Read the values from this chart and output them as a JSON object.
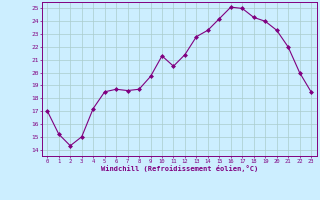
{
  "x": [
    0,
    1,
    2,
    3,
    4,
    5,
    6,
    7,
    8,
    9,
    10,
    11,
    12,
    13,
    14,
    15,
    16,
    17,
    18,
    19,
    20,
    21,
    22,
    23
  ],
  "y": [
    17.0,
    15.2,
    14.3,
    15.0,
    17.2,
    18.5,
    18.7,
    18.6,
    18.7,
    19.7,
    21.3,
    20.5,
    21.4,
    22.8,
    23.3,
    24.2,
    25.1,
    25.0,
    24.3,
    24.0,
    23.3,
    22.0,
    20.0,
    18.5
  ],
  "line_color": "#800080",
  "marker": "D",
  "marker_size": 2.0,
  "bg_color": "#cceeff",
  "grid_color": "#aacccc",
  "xlabel": "Windchill (Refroidissement éolien,°C)",
  "xlim": [
    -0.5,
    23.5
  ],
  "ylim": [
    13.5,
    25.5
  ],
  "yticks": [
    14,
    15,
    16,
    17,
    18,
    19,
    20,
    21,
    22,
    23,
    24,
    25
  ],
  "xticks": [
    0,
    1,
    2,
    3,
    4,
    5,
    6,
    7,
    8,
    9,
    10,
    11,
    12,
    13,
    14,
    15,
    16,
    17,
    18,
    19,
    20,
    21,
    22,
    23
  ],
  "tick_color": "#800080",
  "label_color": "#800080",
  "spine_color": "#800080"
}
